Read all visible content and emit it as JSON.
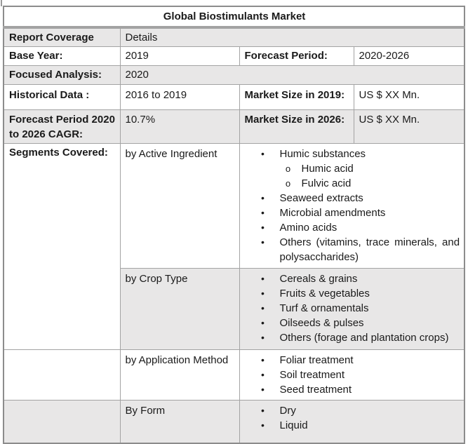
{
  "title": "Global Biostimulants Market",
  "colors": {
    "row_shade": "#e8e7e7",
    "inner_border": "#a3a3a3",
    "outer_border": "#8c8c8c",
    "text": "#1a1a1a"
  },
  "rows": {
    "report_coverage": {
      "label": "Report Coverage",
      "value": "Details"
    },
    "base_year": {
      "label": "Base Year:",
      "value": "2019"
    },
    "forecast_period": {
      "label": "Forecast Period:",
      "value": "2020-2026"
    },
    "focused_analysis": {
      "label": "Focused Analysis:",
      "value": "2020"
    },
    "historical_data": {
      "label": "Historical Data :",
      "value": "2016 to 2019"
    },
    "market_size_2019": {
      "label": "Market Size in 2019:",
      "value": "US $ XX Mn."
    },
    "cagr": {
      "label": "Forecast Period 2020 to 2026 CAGR:",
      "value": "10.7%"
    },
    "market_size_2026": {
      "label": "Market Size in 2026:",
      "value": "US $ XX Mn."
    },
    "segments_covered_label": "Segments Covered:"
  },
  "segments": [
    {
      "name": "by Active Ingredient",
      "items": [
        {
          "text": "Humic substances",
          "children": [
            "Humic acid",
            "Fulvic acid"
          ]
        },
        {
          "text": "Seaweed extracts"
        },
        {
          "text": "Microbial amendments"
        },
        {
          "text": "Amino acids"
        },
        {
          "text": "Others (vitamins, trace minerals, and polysaccharides)",
          "justify": true
        }
      ]
    },
    {
      "name": "by Crop Type",
      "items": [
        {
          "text": "Cereals & grains"
        },
        {
          "text": "Fruits & vegetables"
        },
        {
          "text": "Turf & ornamentals"
        },
        {
          "text": "Oilseeds & pulses"
        },
        {
          "text": "Others (forage and plantation crops)"
        }
      ]
    },
    {
      "name": "by Application Method",
      "items": [
        {
          "text": "Foliar treatment"
        },
        {
          "text": "Soil treatment"
        },
        {
          "text": "Seed treatment"
        }
      ]
    },
    {
      "name": "By Form",
      "items": [
        {
          "text": "Dry"
        },
        {
          "text": "Liquid"
        }
      ]
    }
  ]
}
